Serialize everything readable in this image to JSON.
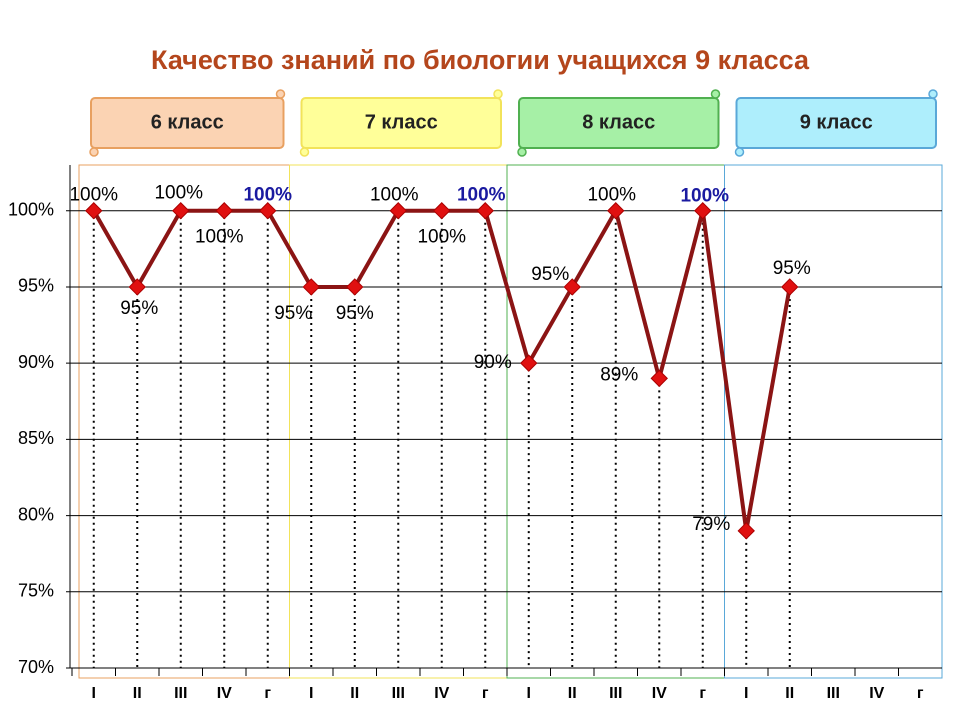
{
  "chart_data": {
    "type": "line",
    "title": "Качество знаний по биологии учащихся 9 класса",
    "groups": [
      {
        "name": "6 класс",
        "fill": "#fbd3b3",
        "color": "#e8a060"
      },
      {
        "name": "7 класс",
        "fill": "#ffff99",
        "color": "#f2e35a"
      },
      {
        "name": "8 класс",
        "fill": "#a6f0a6",
        "color": "#50b050"
      },
      {
        "name": "9 класс",
        "fill": "#aeeefc",
        "color": "#5aa8d8"
      }
    ],
    "categories": [
      "I",
      "II",
      "III",
      "IV",
      "г",
      "I",
      "II",
      "III",
      "IV",
      "г",
      "I",
      "II",
      "III",
      "IV",
      "г",
      "I",
      "II",
      "III",
      "IV",
      "г"
    ],
    "series": [
      {
        "name": null,
        "color": "#8b1414",
        "marker_color": "#e01010",
        "values": [
          100,
          95,
          100,
          100,
          100,
          95,
          95,
          100,
          100,
          100,
          90,
          95,
          100,
          89,
          100,
          79,
          95,
          null,
          null,
          null
        ],
        "value_labels": [
          "100%",
          "95%",
          "100%",
          "100%",
          "100%",
          "95%",
          "95%",
          "100%",
          "100%",
          "100%",
          "90%",
          "95%",
          "100%",
          "89%",
          "100%",
          "79%",
          "95%",
          null,
          null,
          null
        ],
        "value_label_colors": [
          "#000000",
          "#000000",
          "#000000",
          "#000000",
          "#1a1aa0",
          "#000000",
          "#000000",
          "#000000",
          "#000000",
          "#1a1aa0",
          "#000000",
          "#000000",
          "#000000",
          "#000000",
          "#1a1aa0",
          "#000000",
          "#000000",
          null,
          null,
          null
        ]
      }
    ],
    "ylim": [
      70,
      103
    ],
    "yticks": [
      {
        "value": 70,
        "label": "70%"
      },
      {
        "value": 75,
        "label": "75%"
      },
      {
        "value": 80,
        "label": "80%"
      },
      {
        "value": 85,
        "label": "85%"
      },
      {
        "value": 90,
        "label": "90%"
      },
      {
        "value": 95,
        "label": "95%"
      },
      {
        "value": 100,
        "label": "100%"
      }
    ],
    "grid": true
  }
}
